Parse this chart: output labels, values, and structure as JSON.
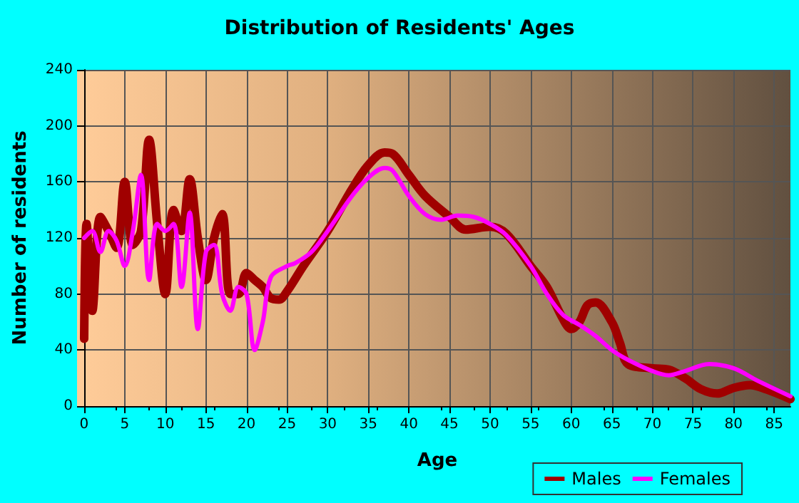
{
  "chart_data": {
    "type": "line",
    "title": "Distribution of Residents' Ages",
    "xlabel": "Age",
    "ylabel": "Number of residents",
    "xlim": [
      0,
      87
    ],
    "xticks": [
      0,
      5,
      10,
      15,
      20,
      25,
      30,
      35,
      40,
      45,
      50,
      55,
      60,
      65,
      70,
      75,
      80,
      85
    ],
    "ylim": [
      0,
      240
    ],
    "yticks": [
      0,
      40,
      80,
      120,
      160,
      200,
      240
    ],
    "grid": true,
    "legend": "bottom right",
    "marker": "none",
    "line_style": "solid",
    "series": [
      {
        "name": "Males",
        "color": "#a00000",
        "x": [
          0,
          0.3,
          1,
          2,
          3,
          4,
          5,
          6,
          7,
          8,
          9,
          10,
          11,
          12,
          13,
          14,
          15,
          16,
          17,
          18,
          19,
          20,
          21,
          22,
          23,
          24,
          25,
          27,
          30,
          33,
          35,
          37,
          38,
          40,
          42,
          45,
          47,
          50,
          52,
          55,
          57,
          59,
          60,
          61,
          62,
          63,
          65,
          66,
          67,
          70,
          72,
          74,
          76,
          78,
          80,
          82,
          84,
          87
        ],
        "values": [
          48,
          130,
          68,
          135,
          125,
          113,
          160,
          115,
          125,
          190,
          130,
          80,
          140,
          125,
          162,
          120,
          90,
          120,
          137,
          80,
          80,
          95,
          90,
          85,
          77,
          76,
          82,
          100,
          125,
          155,
          172,
          181,
          180,
          165,
          150,
          135,
          126,
          128,
          123,
          100,
          85,
          62,
          55,
          60,
          72,
          74,
          60,
          45,
          30,
          27,
          26,
          20,
          12,
          9,
          13,
          15,
          12,
          5
        ]
      },
      {
        "name": "Females",
        "color": "#ff00ff",
        "x": [
          0,
          1,
          2,
          3,
          4,
          5,
          6,
          7,
          8,
          9,
          10,
          11,
          12,
          13,
          14,
          15,
          16,
          17,
          18,
          19,
          20,
          21,
          22,
          23,
          25,
          26,
          28,
          30,
          33,
          35,
          37,
          38,
          40,
          42,
          44,
          46,
          48,
          50,
          52,
          55,
          57,
          59,
          61,
          63,
          65,
          67,
          70,
          72,
          74,
          77,
          80,
          83,
          87
        ],
        "values": [
          120,
          125,
          110,
          125,
          118,
          100,
          125,
          165,
          90,
          130,
          125,
          130,
          85,
          138,
          55,
          110,
          115,
          80,
          68,
          85,
          80,
          40,
          60,
          92,
          100,
          102,
          110,
          125,
          150,
          163,
          170,
          168,
          150,
          137,
          133,
          136,
          135,
          130,
          122,
          100,
          80,
          65,
          58,
          50,
          40,
          33,
          25,
          22,
          25,
          30,
          27,
          18,
          7
        ]
      }
    ]
  }
}
